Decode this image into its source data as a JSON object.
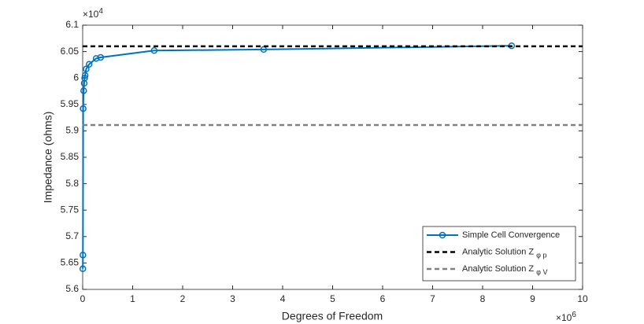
{
  "chart_data": {
    "type": "line",
    "x_label": "Degrees of Freedom",
    "y_label": "Impedance (ohms)",
    "x_exponent_base": "×10",
    "x_exponent": "6",
    "y_exponent_base": "×10",
    "y_exponent": "4",
    "xlim": [
      0,
      10
    ],
    "ylim": [
      5.6,
      6.1
    ],
    "xticks": [
      0,
      1,
      2,
      3,
      4,
      5,
      6,
      7,
      8,
      9,
      10
    ],
    "yticks": [
      5.6,
      5.65,
      5.7,
      5.75,
      5.8,
      5.85,
      5.9,
      5.95,
      6,
      6.05,
      6.1
    ],
    "grid": false,
    "legend_position": "lower-right",
    "series": [
      {
        "name": "Simple Cell Convergence",
        "color": "#0072bd",
        "style": "solid-marker",
        "x": [
          0.003,
          0.005,
          0.01,
          0.02,
          0.03,
          0.04,
          0.05,
          0.07,
          0.13,
          0.27,
          0.36,
          1.43,
          3.62,
          8.58
        ],
        "values": [
          5.639,
          5.665,
          5.942,
          5.976,
          5.99,
          6.0,
          6.005,
          6.017,
          6.026,
          6.037,
          6.039,
          6.052,
          6.054,
          6.061
        ]
      },
      {
        "name": "Analytic Solution Z",
        "subscript": "φ p",
        "color": "#000000",
        "style": "hline-dashed",
        "values": [
          6.06
        ]
      },
      {
        "name": "Analytic Solution Z",
        "subscript": "φ V",
        "color": "#808080",
        "style": "hline-dashed",
        "values": [
          5.911
        ]
      }
    ]
  }
}
